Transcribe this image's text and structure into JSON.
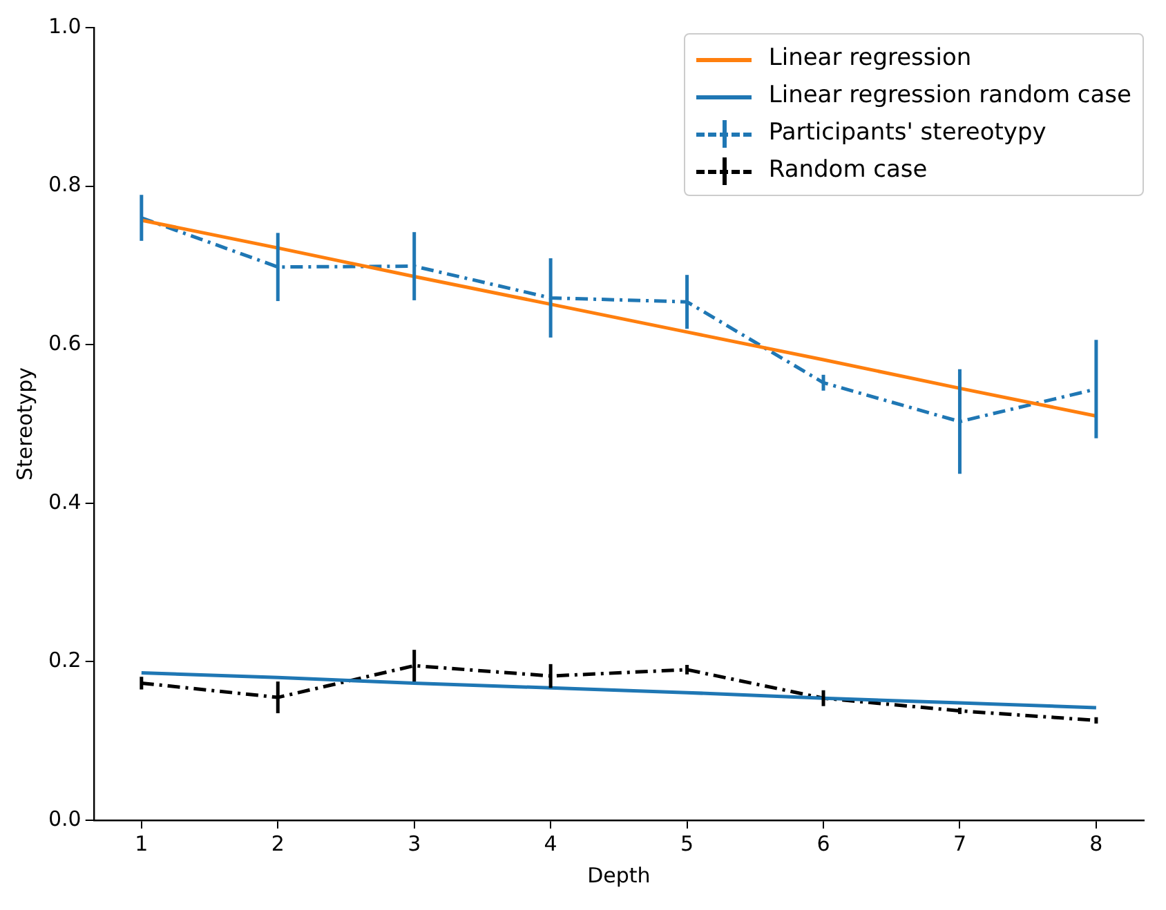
{
  "chart_data": {
    "type": "line",
    "xlabel": "Depth",
    "ylabel": "Stereotypy",
    "x": [
      1,
      2,
      3,
      4,
      5,
      6,
      7,
      8
    ],
    "xlim": [
      0.65,
      8.35
    ],
    "xticks": [
      1,
      2,
      3,
      4,
      5,
      6,
      7,
      8
    ],
    "ylim": [
      0,
      1
    ],
    "yticks": [
      {
        "value": 0,
        "label": "0.0"
      },
      0.2,
      0.4,
      0.6,
      0.8,
      {
        "value": 1,
        "label": "1.0"
      }
    ],
    "grid": false,
    "legend": "top right",
    "marker": "none",
    "series": [
      {
        "name": "Linear regression",
        "color": "#ff7f0e",
        "line_style": "solid",
        "values": [
          0.757,
          0.722,
          0.686,
          0.651,
          0.616,
          0.581,
          0.545,
          0.51
        ]
      },
      {
        "name": "Linear regression random case",
        "color": "#1f77b4",
        "line_style": "solid",
        "values": [
          0.186,
          0.18,
          0.173,
          0.167,
          0.161,
          0.154,
          0.148,
          0.142
        ]
      },
      {
        "name": "Participants' stereotypy",
        "color": "#1f77b4",
        "line_style": "dashed",
        "values": [
          0.76,
          0.698,
          0.699,
          0.659,
          0.654,
          0.552,
          0.503,
          0.544
        ],
        "errors": [
          0.029,
          0.043,
          0.043,
          0.05,
          0.034,
          0.01,
          0.066,
          0.062
        ]
      },
      {
        "name": "Random case",
        "color": "#000000",
        "line_style": "dashed",
        "values": [
          0.173,
          0.155,
          0.195,
          0.182,
          0.19,
          0.154,
          0.138,
          0.126
        ],
        "errors": [
          0.008,
          0.02,
          0.02,
          0.015,
          0.006,
          0.01,
          0.004,
          0.004
        ]
      }
    ]
  }
}
